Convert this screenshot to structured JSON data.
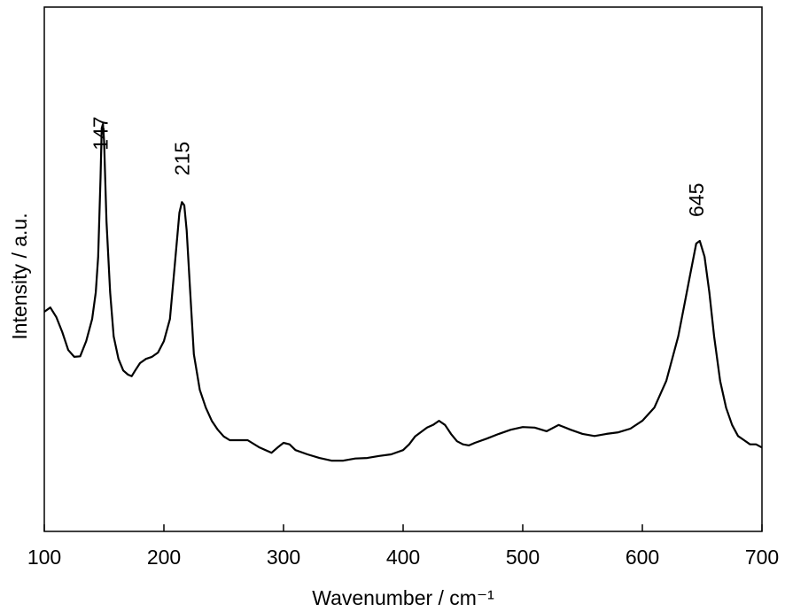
{
  "chart_data": {
    "type": "line",
    "x_label": "Wavenumber / cm⁻¹",
    "y_label": "Intensity / a.u.",
    "xlim": [
      100,
      700
    ],
    "xticks": [
      100,
      200,
      300,
      400,
      500,
      600,
      700
    ],
    "ylim": [
      0,
      100
    ],
    "color": "#000000",
    "x": [
      100,
      105,
      110,
      115,
      120,
      125,
      130,
      135,
      140,
      143,
      145,
      147,
      148,
      149,
      150,
      152,
      155,
      158,
      162,
      166,
      170,
      173,
      176,
      180,
      185,
      190,
      195,
      200,
      205,
      209,
      213,
      215,
      217,
      219,
      222,
      225,
      230,
      235,
      240,
      245,
      250,
      255,
      260,
      270,
      280,
      290,
      295,
      300,
      305,
      310,
      320,
      330,
      340,
      350,
      360,
      370,
      380,
      390,
      400,
      405,
      410,
      420,
      425,
      430,
      435,
      440,
      445,
      450,
      455,
      460,
      470,
      480,
      490,
      500,
      510,
      520,
      530,
      540,
      550,
      560,
      570,
      580,
      590,
      600,
      610,
      620,
      630,
      635,
      640,
      645,
      648,
      652,
      656,
      660,
      665,
      670,
      675,
      680,
      685,
      690,
      695,
      700
    ],
    "values": [
      41.9,
      42.7,
      40.9,
      38.0,
      34.6,
      33.3,
      33.4,
      36.3,
      40.5,
      45.6,
      52.4,
      67.6,
      76.9,
      77.7,
      74.3,
      59.1,
      45.6,
      37.2,
      32.9,
      30.7,
      29.9,
      29.6,
      30.7,
      32.1,
      32.9,
      33.3,
      34.1,
      36.3,
      40.5,
      50.7,
      60.8,
      62.8,
      62.2,
      57.4,
      45.6,
      33.8,
      27.0,
      23.6,
      21.1,
      19.4,
      18.1,
      17.4,
      17.4,
      17.4,
      16.0,
      15.0,
      16.0,
      16.9,
      16.6,
      15.5,
      14.7,
      14.0,
      13.5,
      13.5,
      13.9,
      14.0,
      14.4,
      14.7,
      15.5,
      16.6,
      18.1,
      19.8,
      20.3,
      21.1,
      20.3,
      18.6,
      17.2,
      16.6,
      16.4,
      16.9,
      17.7,
      18.6,
      19.4,
      19.9,
      19.8,
      19.1,
      20.3,
      19.4,
      18.6,
      18.2,
      18.6,
      18.9,
      19.6,
      21.1,
      23.6,
      28.7,
      37.2,
      43.1,
      49.0,
      54.9,
      55.4,
      52.4,
      45.6,
      37.2,
      28.7,
      23.6,
      20.3,
      18.2,
      17.4,
      16.6,
      16.6,
      16.0
    ],
    "annotations": [
      {
        "x": 147,
        "label": "147"
      },
      {
        "x": 215,
        "label": "215"
      },
      {
        "x": 645,
        "label": "645"
      }
    ]
  }
}
